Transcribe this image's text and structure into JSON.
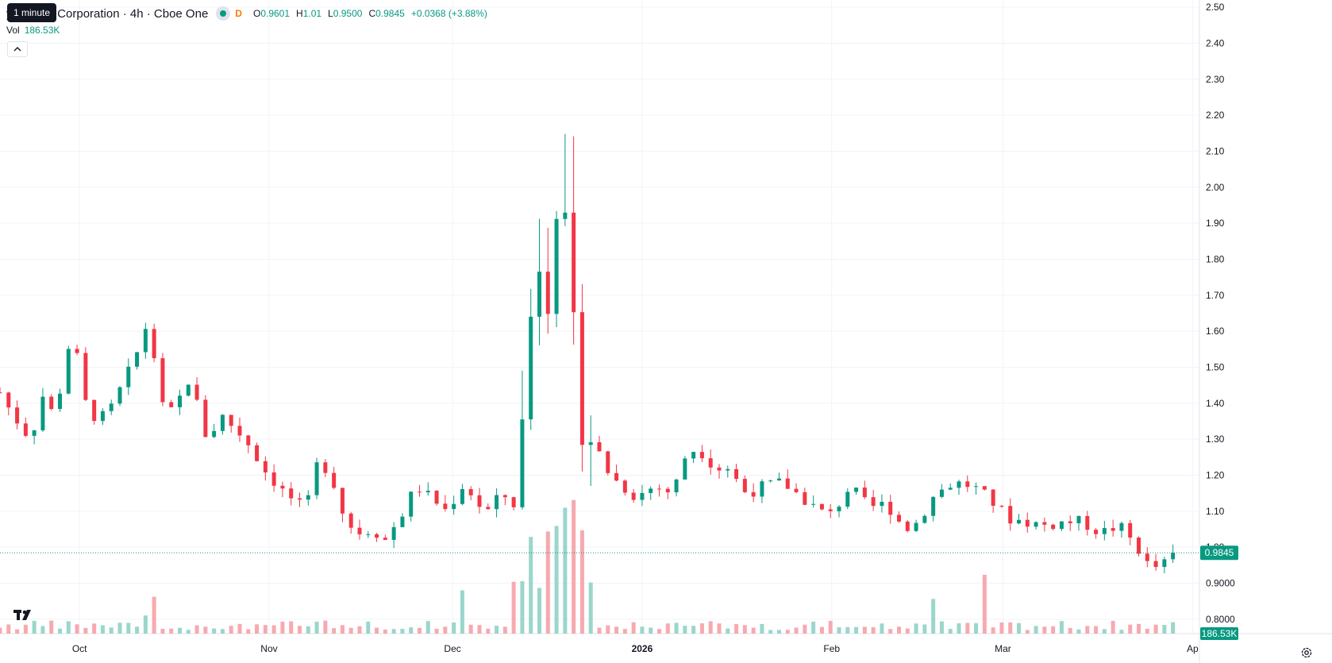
{
  "legend": {
    "symbol": "y Growth Corporation · 4h · Cboe One",
    "badge": "D",
    "tooltip": "1 minute",
    "ohlc": [
      {
        "key": "O",
        "value": "0.9601"
      },
      {
        "key": "H",
        "value": "1.01"
      },
      {
        "key": "L",
        "value": "0.9500"
      },
      {
        "key": "C",
        "value": "0.9845"
      }
    ],
    "change": "+0.0368 (+3.88%)",
    "volume_label": "Vol",
    "volume_value": "186.53K"
  },
  "colors": {
    "up": "#089981",
    "down": "#f23645",
    "up_vol": "#9ad6cb",
    "down_vol": "#f7a9af",
    "grid": "#f0f3fa"
  },
  "chart_data": {
    "type": "candlestick",
    "timeframe": "4h",
    "price_axis": {
      "range": [
        0.76,
        2.52
      ],
      "ticks": [
        "2.50",
        "2.40",
        "2.30",
        "2.20",
        "2.10",
        "2.00",
        "1.90",
        "1.80",
        "1.70",
        "1.60",
        "1.50",
        "1.40",
        "1.30",
        "1.20",
        "1.10",
        "1.00",
        "0.9000",
        "0.8000"
      ]
    },
    "time_axis": {
      "range": [
        "2025-09-18",
        "2026-04-02"
      ],
      "labels": [
        {
          "text": "Oct",
          "date": "2025-10-01"
        },
        {
          "text": "Nov",
          "date": "2025-11-01"
        },
        {
          "text": "Dec",
          "date": "2025-12-01"
        },
        {
          "text": "2026",
          "date": "2026-01-01",
          "bold": true
        },
        {
          "text": "Feb",
          "date": "2026-02-01"
        },
        {
          "text": "Mar",
          "date": "2026-03-01"
        },
        {
          "text": "Ap",
          "date": "2026-04-01"
        }
      ]
    },
    "last_price_label": "0.9845",
    "last_price": 0.9845,
    "volume_label": "186.53K",
    "volume_max": 1.2,
    "path": [
      [
        "2025-09-18",
        1.43
      ],
      [
        "2025-09-20",
        1.37
      ],
      [
        "2025-09-23",
        1.3
      ],
      [
        "2025-09-25",
        1.42
      ],
      [
        "2025-09-27",
        1.36
      ],
      [
        "2025-09-29",
        1.55
      ],
      [
        "2025-09-30",
        1.58
      ],
      [
        "2025-10-02",
        1.4
      ],
      [
        "2025-10-04",
        1.35
      ],
      [
        "2025-10-06",
        1.38
      ],
      [
        "2025-10-08",
        1.45
      ],
      [
        "2025-10-10",
        1.52
      ],
      [
        "2025-10-12",
        1.62
      ],
      [
        "2025-10-13",
        1.55
      ],
      [
        "2025-10-15",
        1.35
      ],
      [
        "2025-10-17",
        1.4
      ],
      [
        "2025-10-19",
        1.47
      ],
      [
        "2025-10-22",
        1.29
      ],
      [
        "2025-10-24",
        1.37
      ],
      [
        "2025-10-27",
        1.32
      ],
      [
        "2025-10-29",
        1.28
      ],
      [
        "2025-10-31",
        1.22
      ],
      [
        "2025-11-03",
        1.16
      ],
      [
        "2025-11-05",
        1.13
      ],
      [
        "2025-11-07",
        1.1
      ],
      [
        "2025-11-09",
        1.24
      ],
      [
        "2025-11-11",
        1.21
      ],
      [
        "2025-11-13",
        1.1
      ],
      [
        "2025-11-15",
        1.04
      ],
      [
        "2025-11-18",
        1.05
      ],
      [
        "2025-11-20",
        1.02
      ],
      [
        "2025-11-23",
        1.1
      ],
      [
        "2025-11-25",
        1.17
      ],
      [
        "2025-11-28",
        1.13
      ],
      [
        "2025-11-30",
        1.1
      ],
      [
        "2025-12-03",
        1.18
      ],
      [
        "2025-12-05",
        1.12
      ],
      [
        "2025-12-07",
        1.1
      ],
      [
        "2025-12-09",
        1.15
      ],
      [
        "2025-12-11",
        1.12
      ],
      [
        "2025-12-13",
        1.42
      ],
      [
        "2025-12-14",
        1.7
      ],
      [
        "2025-12-15",
        1.88
      ],
      [
        "2025-12-16",
        1.62
      ],
      [
        "2025-12-17",
        1.85
      ],
      [
        "2025-12-18",
        2.0
      ],
      [
        "2025-12-19",
        1.9
      ],
      [
        "2025-12-20",
        1.72
      ],
      [
        "2025-12-21",
        1.5
      ],
      [
        "2025-12-22",
        1.4
      ],
      [
        "2025-12-24",
        1.3
      ],
      [
        "2025-12-26",
        1.22
      ],
      [
        "2025-12-28",
        1.18
      ],
      [
        "2025-12-31",
        1.14
      ],
      [
        "2026-01-03",
        1.17
      ],
      [
        "2026-01-06",
        1.15
      ],
      [
        "2026-01-08",
        1.25
      ],
      [
        "2026-01-10",
        1.28
      ],
      [
        "2026-01-13",
        1.22
      ],
      [
        "2026-01-15",
        1.22
      ],
      [
        "2026-01-18",
        1.15
      ],
      [
        "2026-01-21",
        1.17
      ],
      [
        "2026-01-24",
        1.18
      ],
      [
        "2026-01-27",
        1.14
      ],
      [
        "2026-01-30",
        1.1
      ],
      [
        "2026-02-01",
        1.09
      ],
      [
        "2026-02-04",
        1.17
      ],
      [
        "2026-02-07",
        1.11
      ],
      [
        "2026-02-10",
        1.12
      ],
      [
        "2026-02-13",
        1.05
      ],
      [
        "2026-02-15",
        1.07
      ],
      [
        "2026-02-18",
        1.15
      ],
      [
        "2026-02-21",
        1.18
      ],
      [
        "2026-02-24",
        1.17
      ],
      [
        "2026-02-27",
        1.13
      ],
      [
        "2026-03-02",
        1.08
      ],
      [
        "2026-03-05",
        1.07
      ],
      [
        "2026-03-08",
        1.06
      ],
      [
        "2026-03-11",
        1.07
      ],
      [
        "2026-03-14",
        1.07
      ],
      [
        "2026-03-17",
        1.04
      ],
      [
        "2026-03-20",
        1.06
      ],
      [
        "2026-03-23",
        1.0
      ],
      [
        "2026-03-25",
        0.94
      ],
      [
        "2026-03-27",
        0.95
      ],
      [
        "2026-03-30",
        0.9845
      ]
    ]
  }
}
